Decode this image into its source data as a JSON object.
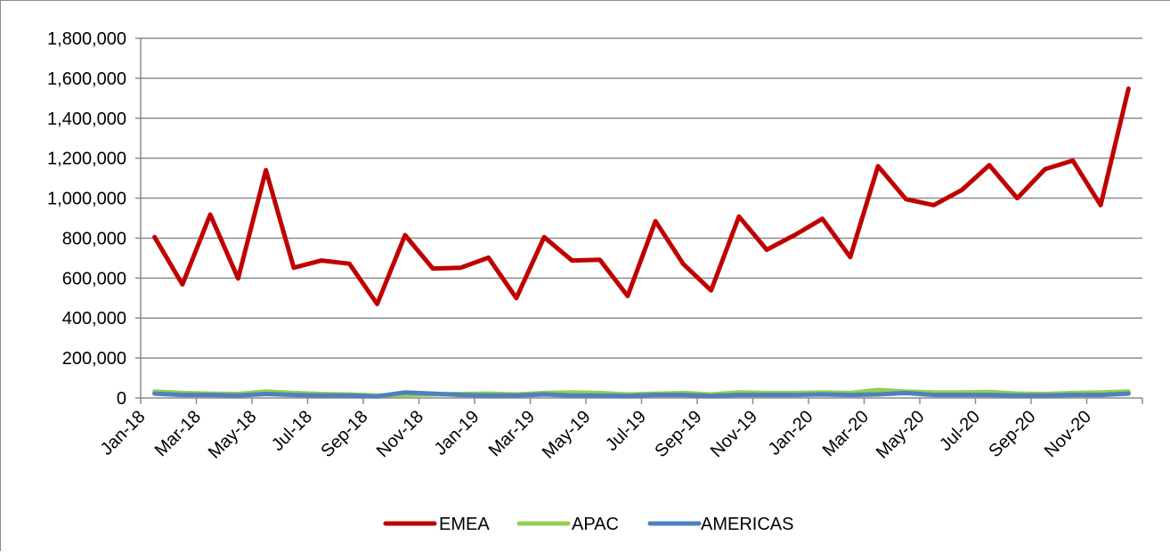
{
  "chart_data": {
    "type": "line",
    "title": "",
    "xlabel": "",
    "ylabel": "",
    "ylim": [
      0,
      1800000
    ],
    "yticks": [
      0,
      200000,
      400000,
      600000,
      800000,
      1000000,
      1200000,
      1400000,
      1600000,
      1800000
    ],
    "ytick_labels": [
      "0",
      "200,000",
      "400,000",
      "600,000",
      "800,000",
      "1,000,000",
      "1,200,000",
      "1,400,000",
      "1,600,000",
      "1,800,000"
    ],
    "grid": "horizontal",
    "legend_position": "bottom",
    "x": [
      "Jan-18",
      "Feb-18",
      "Mar-18",
      "Apr-18",
      "May-18",
      "Jun-18",
      "Jul-18",
      "Aug-18",
      "Sep-18",
      "Oct-18",
      "Nov-18",
      "Dec-18",
      "Jan-19",
      "Feb-19",
      "Mar-19",
      "Apr-19",
      "May-19",
      "Jun-19",
      "Jul-19",
      "Aug-19",
      "Sep-19",
      "Oct-19",
      "Nov-19",
      "Dec-19",
      "Jan-20",
      "Feb-20",
      "Mar-20",
      "Apr-20",
      "May-20",
      "Jun-20",
      "Jul-20",
      "Aug-20",
      "Sep-20",
      "Oct-20",
      "Nov-20",
      "Dec-20"
    ],
    "xtick_labels": [
      "Jan-18",
      "Mar-18",
      "May-18",
      "Jul-18",
      "Sep-18",
      "Nov-18",
      "Jan-19",
      "Mar-19",
      "May-19",
      "Jul-19",
      "Sep-19",
      "Nov-19",
      "Jan-20",
      "Mar-20",
      "May-20",
      "Jul-20",
      "Sep-20",
      "Nov-20"
    ],
    "series": [
      {
        "name": "EMEA",
        "color": "#C00000",
        "values": [
          805000,
          568000,
          918000,
          598000,
          1140000,
          652000,
          688000,
          672000,
          470000,
          815000,
          648000,
          652000,
          702000,
          500000,
          805000,
          688000,
          692000,
          510000,
          885000,
          670000,
          538000,
          908000,
          742000,
          815000,
          897000,
          705000,
          1160000,
          995000,
          965000,
          1040000,
          1165000,
          1000000,
          1145000,
          1188000,
          965000,
          1548000
        ]
      },
      {
        "name": "APAC",
        "color": "#92D050",
        "values": [
          32000,
          25000,
          22000,
          20000,
          32000,
          25000,
          20000,
          18000,
          12000,
          15000,
          18000,
          20000,
          22000,
          18000,
          25000,
          28000,
          25000,
          18000,
          22000,
          25000,
          18000,
          28000,
          25000,
          25000,
          28000,
          25000,
          40000,
          32000,
          28000,
          28000,
          30000,
          22000,
          20000,
          25000,
          28000,
          32000
        ]
      },
      {
        "name": "AMERICAS",
        "color": "#4F81BD",
        "values": [
          22000,
          15000,
          15000,
          12000,
          20000,
          15000,
          12000,
          12000,
          8000,
          28000,
          22000,
          15000,
          12000,
          12000,
          18000,
          12000,
          12000,
          10000,
          15000,
          15000,
          10000,
          15000,
          15000,
          15000,
          18000,
          15000,
          18000,
          25000,
          15000,
          15000,
          15000,
          12000,
          12000,
          15000,
          15000,
          22000
        ]
      }
    ]
  }
}
